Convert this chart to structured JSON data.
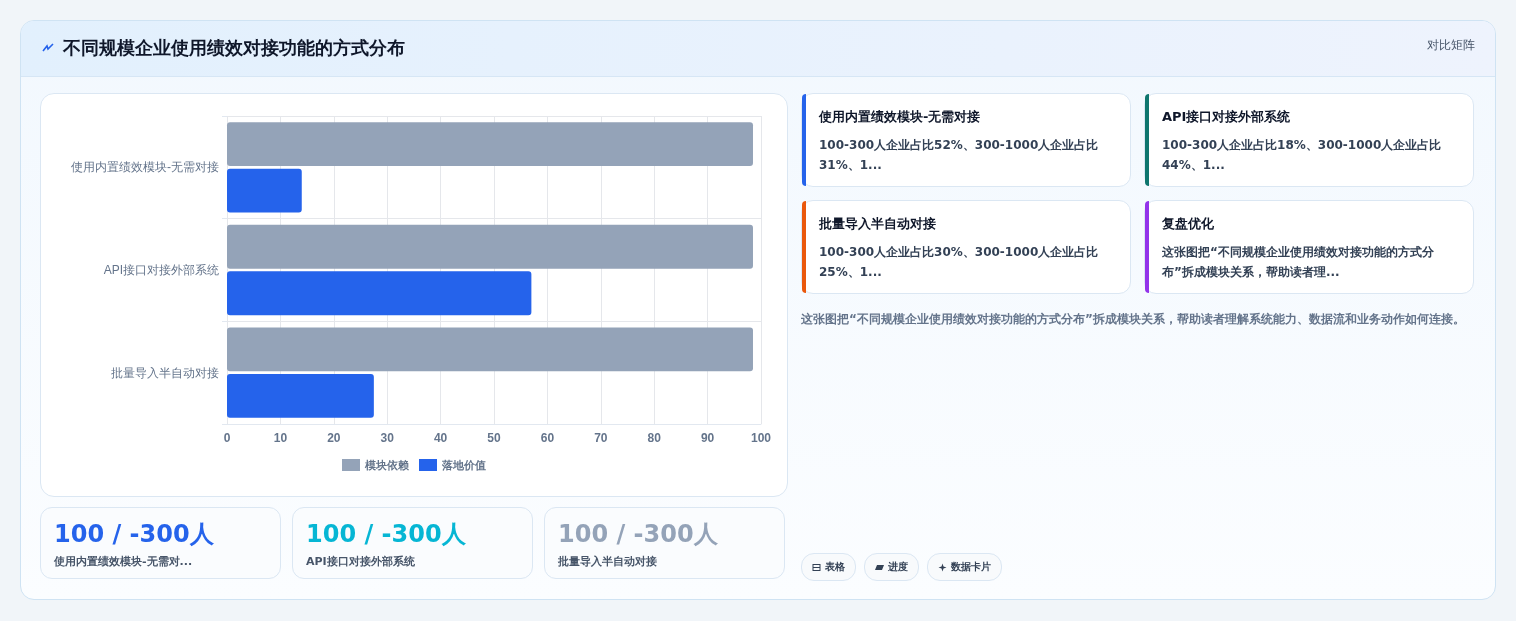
{
  "chart_data": [
    {
      "type": "other",
      "annotations": [
        "不同规模企业使用绩效对接功能的方式分布",
        "对比矩阵"
      ]
    },
    {
      "type": "bar",
      "orientation": "horizontal",
      "categories": [
        "使用内置绩效模块-无需对接",
        "API接口对接外部系统",
        "批量导入半自动对接"
      ],
      "series": [
        {
          "name": "模块依赖",
          "color": "#94a3b8",
          "values": [
            98.5,
            98.5,
            98.5
          ]
        },
        {
          "name": "落地价值",
          "color": "#2563eb",
          "values": [
            14,
            57,
            27.5
          ]
        }
      ],
      "xlim": [
        0,
        100
      ],
      "xticks": [
        0,
        10,
        20,
        30,
        40,
        50,
        60,
        70,
        80,
        90,
        100
      ],
      "grid": true,
      "legend": "bottom"
    },
    {
      "type": "other",
      "annotations": [
        "使用内置绩效模块-无需对接",
        "100-300人企业占比52%、300-1000人企业占比31%、1...",
        "API接口对接外部系统",
        "100-300人企业占比18%、300-1000人企业占比44%、1...",
        "批量导入半自动对接",
        "100-300人企业占比30%、300-1000人企业占比25%、1...",
        "复盘优化",
        "这张图把“不同规模企业使用绩效对接功能的方式分布”拆成模块关系，帮助读者理...",
        "这张图把“不同规模企业使用绩效对接功能的方式分布”拆成模块关系，帮助读者理解系统能力、数据流和业务动作如何连接。"
      ]
    },
    {
      "type": "other",
      "annotations": [
        "100 / -300人",
        "使用内置绩效模块-无需对...",
        "100 / -300人",
        "API接口对接外部系统",
        "100 / -300人",
        "批量导入半自动对接"
      ]
    },
    {
      "type": "other",
      "annotations": [
        "表格",
        "进度",
        "数据卡片"
      ]
    }
  ]
}
